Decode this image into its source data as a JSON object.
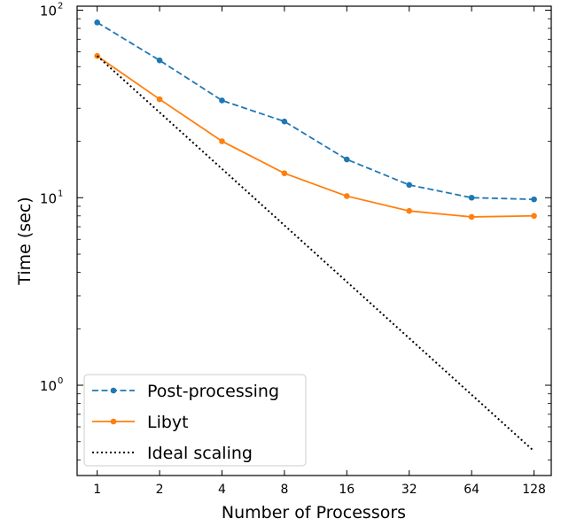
{
  "chart_data": {
    "type": "line",
    "xlabel": "Number of Processors",
    "ylabel": "Time (sec)",
    "x_scale": "log2",
    "y_scale": "log10",
    "xlim": [
      0.8,
      155
    ],
    "ylim": [
      0.33,
      105
    ],
    "x": [
      1,
      2,
      4,
      8,
      16,
      32,
      64,
      128
    ],
    "x_tick_labels": [
      "1",
      "2",
      "4",
      "8",
      "16",
      "32",
      "64",
      "128"
    ],
    "y_tick_labels": [
      {
        "base": "10",
        "exp": "0",
        "value": 1
      },
      {
        "base": "10",
        "exp": "1",
        "value": 10
      },
      {
        "base": "10",
        "exp": "2",
        "value": 100
      }
    ],
    "grid": false,
    "legend_position": "lower-left",
    "series": [
      {
        "name": "Post-processing",
        "color": "#1f77b4",
        "style": "dashed",
        "markers": true,
        "values": [
          86,
          54,
          33,
          25.5,
          16,
          11.7,
          10,
          9.8
        ]
      },
      {
        "name": "Libyt",
        "color": "#ff7f0e",
        "style": "solid",
        "markers": true,
        "values": [
          57,
          33.5,
          20,
          13.5,
          10.2,
          8.5,
          7.9,
          8.0
        ]
      },
      {
        "name": "Ideal scaling",
        "color": "#000000",
        "style": "dotted",
        "markers": false,
        "values": [
          57,
          28.5,
          14.25,
          7.125,
          3.5625,
          1.78,
          0.89,
          0.445
        ]
      }
    ]
  }
}
